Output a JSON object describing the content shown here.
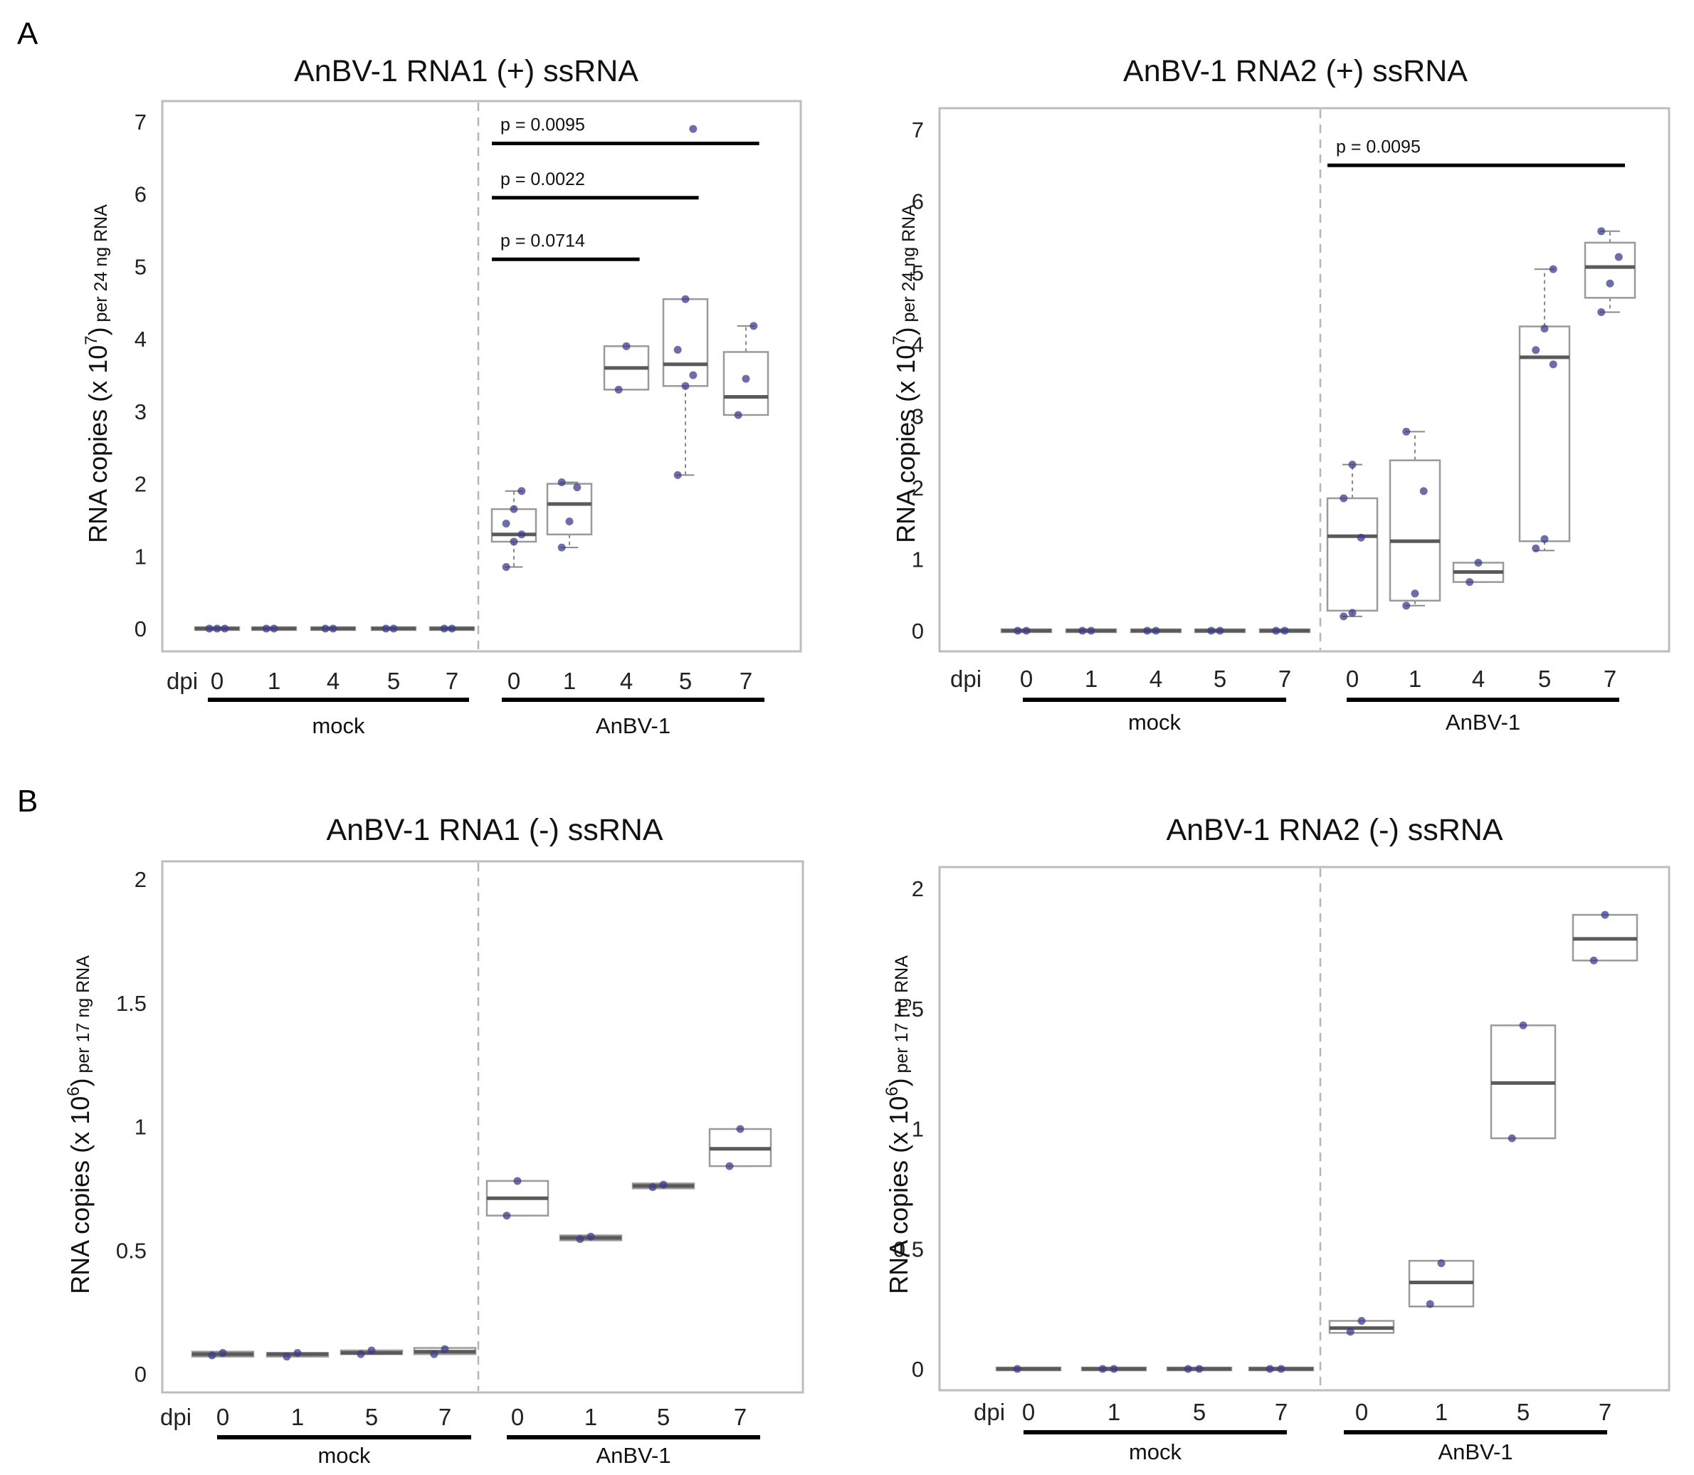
{
  "panel_labels": [
    "A",
    "B"
  ],
  "chart_data": [
    {
      "type": "box",
      "panel": "A",
      "title": "AnBV-1 RNA1 (+) ssRNA",
      "ylabel": "RNA copies (x 10",
      "ylabel_exponent": "7",
      "ylabel_close": ")",
      "ylabel_unit": " per 24 ng RNA",
      "ylim": [
        0,
        7
      ],
      "yticks": [
        "0",
        "1",
        "2",
        "3",
        "4",
        "5",
        "6",
        "7"
      ],
      "x_axis_label": "dpi",
      "groups": [
        {
          "name": "mock",
          "days": [
            "0",
            "1",
            "4",
            "5",
            "7"
          ]
        },
        {
          "name": "AnBV-1",
          "days": [
            "0",
            "1",
            "4",
            "5",
            "7"
          ]
        }
      ],
      "boxes": [
        {
          "q1": 0,
          "median": 0,
          "q3": 0,
          "min": 0,
          "max": 0,
          "points": [
            0,
            0,
            0
          ]
        },
        {
          "q1": 0,
          "median": 0,
          "q3": 0,
          "min": 0,
          "max": 0,
          "points": [
            0,
            0
          ]
        },
        {
          "q1": 0,
          "median": 0,
          "q3": 0,
          "min": 0,
          "max": 0,
          "points": [
            0,
            0
          ]
        },
        {
          "q1": 0,
          "median": 0,
          "q3": 0,
          "min": 0,
          "max": 0,
          "points": [
            0,
            0
          ]
        },
        {
          "q1": 0,
          "median": 0,
          "q3": 0,
          "min": 0,
          "max": 0,
          "points": [
            0,
            0
          ]
        },
        {
          "q1": 1.2,
          "median": 1.3,
          "q3": 1.65,
          "min": 0.85,
          "max": 1.9,
          "points": [
            0.85,
            1.2,
            1.3,
            1.45,
            1.65,
            1.9
          ]
        },
        {
          "q1": 1.3,
          "median": 1.72,
          "q3": 2.0,
          "min": 1.12,
          "max": 2.02,
          "points": [
            1.12,
            1.48,
            1.95,
            2.02
          ]
        },
        {
          "q1": 3.3,
          "median": 3.6,
          "q3": 3.9,
          "min": 3.3,
          "max": 3.9,
          "points": [
            3.3,
            3.9
          ]
        },
        {
          "q1": 3.35,
          "median": 3.65,
          "q3": 4.55,
          "min": 2.12,
          "max": 4.55,
          "points": [
            2.12,
            3.35,
            3.5,
            3.85,
            4.55,
            6.9
          ]
        },
        {
          "q1": 2.95,
          "median": 3.2,
          "q3": 3.82,
          "min": 2.95,
          "max": 4.18,
          "points": [
            2.95,
            3.45,
            4.18
          ]
        }
      ],
      "significance": [
        {
          "label": "p = 0.0095",
          "from": 5,
          "to": 9,
          "y": 6.7
        },
        {
          "label": "p = 0.0022",
          "from": 5,
          "to": 8,
          "y": 5.95
        },
        {
          "label": "p = 0.0714",
          "from": 5,
          "to": 7,
          "y": 5.1
        }
      ]
    },
    {
      "type": "box",
      "panel": "A",
      "title": "AnBV-1 RNA2 (+) ssRNA",
      "ylabel": "RNA copies (x 10",
      "ylabel_exponent": "7",
      "ylabel_close": ")",
      "ylabel_unit": " per 24 ng RNA",
      "ylim": [
        0,
        7
      ],
      "yticks": [
        "0",
        "1",
        "2",
        "3",
        "4",
        "5",
        "6",
        "7"
      ],
      "x_axis_label": "dpi",
      "groups": [
        {
          "name": "mock",
          "days": [
            "0",
            "1",
            "4",
            "5",
            "7"
          ]
        },
        {
          "name": "AnBV-1",
          "days": [
            "0",
            "1",
            "4",
            "5",
            "7"
          ]
        }
      ],
      "boxes": [
        {
          "q1": 0,
          "median": 0,
          "q3": 0,
          "min": 0,
          "max": 0,
          "points": [
            0,
            0
          ]
        },
        {
          "q1": 0,
          "median": 0,
          "q3": 0,
          "min": 0,
          "max": 0,
          "points": [
            0,
            0
          ]
        },
        {
          "q1": 0,
          "median": 0,
          "q3": 0,
          "min": 0,
          "max": 0,
          "points": [
            0,
            0
          ]
        },
        {
          "q1": 0,
          "median": 0,
          "q3": 0,
          "min": 0,
          "max": 0,
          "points": [
            0,
            0
          ]
        },
        {
          "q1": 0,
          "median": 0,
          "q3": 0,
          "min": 0,
          "max": 0,
          "points": [
            0,
            0
          ]
        },
        {
          "q1": 0.28,
          "median": 1.32,
          "q3": 1.85,
          "min": 0.2,
          "max": 2.32,
          "points": [
            0.2,
            0.25,
            1.3,
            1.85,
            2.32
          ]
        },
        {
          "q1": 0.42,
          "median": 1.25,
          "q3": 2.38,
          "min": 0.35,
          "max": 2.78,
          "points": [
            0.35,
            0.52,
            1.95,
            2.78
          ]
        },
        {
          "q1": 0.68,
          "median": 0.82,
          "q3": 0.95,
          "min": 0.68,
          "max": 0.95,
          "points": [
            0.68,
            0.95
          ]
        },
        {
          "q1": 1.25,
          "median": 3.82,
          "q3": 4.25,
          "min": 1.12,
          "max": 5.05,
          "points": [
            1.15,
            1.28,
            3.72,
            3.92,
            4.22,
            5.05
          ]
        },
        {
          "q1": 4.65,
          "median": 5.08,
          "q3": 5.42,
          "min": 4.45,
          "max": 5.58,
          "points": [
            4.45,
            4.85,
            5.22,
            5.58
          ]
        }
      ],
      "significance": [
        {
          "label": "p = 0.0095",
          "from": 5,
          "to": 9,
          "y": 6.5
        }
      ]
    },
    {
      "type": "box",
      "panel": "B",
      "title": "AnBV-1 RNA1 (-) ssRNA",
      "ylabel": "RNA copies (x 10",
      "ylabel_exponent": "6",
      "ylabel_close": ")",
      "ylabel_unit": " per 17 ng RNA",
      "ylim": [
        0,
        2
      ],
      "yticks": [
        "0",
        "0.5",
        "1",
        "1.5",
        "2"
      ],
      "x_axis_label": "dpi",
      "groups": [
        {
          "name": "mock",
          "days": [
            "0",
            "1",
            "5",
            "7"
          ]
        },
        {
          "name": "AnBV-1",
          "days": [
            "0",
            "1",
            "5",
            "7"
          ]
        }
      ],
      "boxes": [
        {
          "q1": 0.07,
          "median": 0.08,
          "q3": 0.09,
          "min": 0.07,
          "max": 0.09,
          "points": [
            0.075,
            0.085
          ]
        },
        {
          "q1": 0.07,
          "median": 0.08,
          "q3": 0.085,
          "min": 0.07,
          "max": 0.085,
          "points": [
            0.07,
            0.085
          ]
        },
        {
          "q1": 0.08,
          "median": 0.085,
          "q3": 0.095,
          "min": 0.08,
          "max": 0.095,
          "points": [
            0.08,
            0.095
          ]
        },
        {
          "q1": 0.08,
          "median": 0.09,
          "q3": 0.105,
          "min": 0.08,
          "max": 0.105,
          "points": [
            0.08,
            0.1
          ]
        },
        {
          "q1": 0.64,
          "median": 0.71,
          "q3": 0.78,
          "min": 0.64,
          "max": 0.78,
          "points": [
            0.64,
            0.78
          ]
        },
        {
          "q1": 0.54,
          "median": 0.55,
          "q3": 0.56,
          "min": 0.54,
          "max": 0.56,
          "points": [
            0.545,
            0.555
          ]
        },
        {
          "q1": 0.75,
          "median": 0.76,
          "q3": 0.77,
          "min": 0.75,
          "max": 0.77,
          "points": [
            0.755,
            0.765
          ]
        },
        {
          "q1": 0.84,
          "median": 0.91,
          "q3": 0.99,
          "min": 0.84,
          "max": 0.99,
          "points": [
            0.84,
            0.99
          ]
        }
      ],
      "significance": []
    },
    {
      "type": "box",
      "panel": "B",
      "title": "AnBV-1 RNA2 (-) ssRNA",
      "ylabel": "RNA copies (x 10",
      "ylabel_exponent": "6",
      "ylabel_close": ")",
      "ylabel_unit": " per 17 ng RNA",
      "ylim": [
        0,
        2
      ],
      "yticks": [
        "0",
        "0.5",
        "1",
        "1.5",
        "2"
      ],
      "x_axis_label": "dpi",
      "groups": [
        {
          "name": "mock",
          "days": [
            "0",
            "1",
            "5",
            "7"
          ]
        },
        {
          "name": "AnBV-1",
          "days": [
            "0",
            "1",
            "5",
            "7"
          ]
        }
      ],
      "boxes": [
        {
          "q1": 0,
          "median": 0,
          "q3": 0,
          "min": 0,
          "max": 0,
          "points": [
            0
          ]
        },
        {
          "q1": 0,
          "median": 0,
          "q3": 0,
          "min": 0,
          "max": 0,
          "points": [
            0,
            0
          ]
        },
        {
          "q1": 0,
          "median": 0,
          "q3": 0,
          "min": 0,
          "max": 0,
          "points": [
            0,
            0
          ]
        },
        {
          "q1": 0,
          "median": 0,
          "q3": 0,
          "min": 0,
          "max": 0,
          "points": [
            0,
            0
          ]
        },
        {
          "q1": 0.15,
          "median": 0.17,
          "q3": 0.2,
          "min": 0.15,
          "max": 0.2,
          "points": [
            0.155,
            0.2
          ]
        },
        {
          "q1": 0.26,
          "median": 0.36,
          "q3": 0.45,
          "min": 0.26,
          "max": 0.45,
          "points": [
            0.27,
            0.44
          ]
        },
        {
          "q1": 0.96,
          "median": 1.19,
          "q3": 1.43,
          "min": 0.96,
          "max": 1.43,
          "points": [
            0.96,
            1.43
          ]
        },
        {
          "q1": 1.7,
          "median": 1.79,
          "q3": 1.89,
          "min": 1.7,
          "max": 1.89,
          "points": [
            1.7,
            1.89
          ]
        }
      ],
      "significance": []
    }
  ]
}
